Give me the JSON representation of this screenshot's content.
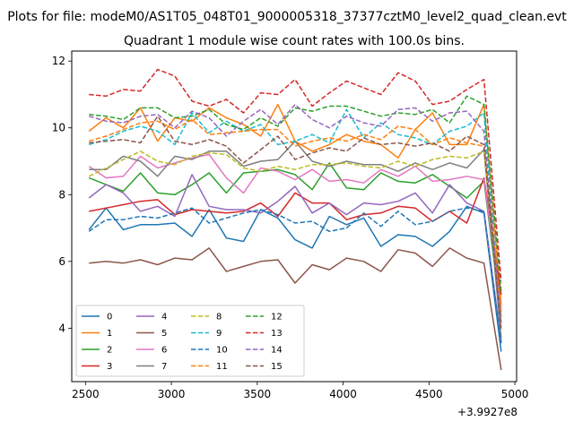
{
  "chart_data": {
    "type": "line",
    "suptitle": "Plots for file: modeM0/AS1T05_048T01_9000005318_37377cztM0_level2_quad_clean.evt",
    "title": "Quadrant 1 module wise count rates with 100.0s bins.",
    "xlabel": "",
    "ylabel": "",
    "x_offset_label": "+3.9927e8",
    "xlim": [
      2420,
      5010
    ],
    "ylim": [
      2.4,
      12.3
    ],
    "x_ticks": [
      2500,
      3000,
      3500,
      4000,
      4500,
      5000
    ],
    "x_tick_labels": [
      "2500",
      "3000",
      "3500",
      "4000",
      "4500",
      "5000"
    ],
    "y_ticks": [
      4,
      6,
      8,
      10,
      12
    ],
    "y_tick_labels": [
      "4",
      "6",
      "8",
      "10",
      "12"
    ],
    "grid": false,
    "legend_position": "lower-left",
    "x": [
      2520,
      2620,
      2720,
      2820,
      2920,
      3020,
      3120,
      3220,
      3320,
      3420,
      3520,
      3620,
      3720,
      3820,
      3920,
      4020,
      4120,
      4220,
      4320,
      4420,
      4520,
      4620,
      4720,
      4820,
      4920
    ],
    "series": [
      {
        "name": "0",
        "color": "#1f77b4",
        "dash": "solid",
        "values": [
          6.95,
          7.6,
          6.95,
          7.1,
          7.1,
          7.15,
          6.75,
          7.55,
          6.7,
          6.6,
          7.55,
          7.3,
          6.65,
          6.4,
          7.35,
          7.1,
          7.3,
          6.45,
          6.8,
          6.75,
          6.45,
          6.9,
          7.65,
          7.45,
          3.3
        ]
      },
      {
        "name": "1",
        "color": "#ff7f0e",
        "dash": "solid",
        "values": [
          9.9,
          10.3,
          10.0,
          10.6,
          9.6,
          10.3,
          10.2,
          10.6,
          10.3,
          10.1,
          9.75,
          10.7,
          9.6,
          9.3,
          9.5,
          9.8,
          9.6,
          9.5,
          9.1,
          9.95,
          10.45,
          9.5,
          9.5,
          10.7,
          4.7
        ]
      },
      {
        "name": "2",
        "color": "#2ca02c",
        "dash": "solid",
        "values": [
          8.5,
          8.3,
          8.1,
          8.65,
          8.05,
          8.0,
          8.3,
          8.65,
          8.05,
          8.65,
          8.7,
          8.75,
          8.6,
          8.15,
          8.95,
          8.2,
          8.15,
          8.65,
          8.4,
          8.35,
          8.6,
          8.25,
          7.9,
          8.4,
          4.35
        ]
      },
      {
        "name": "3",
        "color": "#d62728",
        "dash": "solid",
        "values": [
          7.5,
          7.6,
          7.7,
          7.8,
          7.85,
          7.4,
          7.55,
          7.5,
          7.45,
          7.5,
          7.75,
          7.35,
          8.05,
          7.75,
          7.75,
          7.25,
          7.4,
          7.45,
          7.65,
          7.6,
          7.2,
          7.5,
          7.15,
          8.5,
          5.0
        ]
      },
      {
        "name": "4",
        "color": "#9467bd",
        "dash": "solid",
        "values": [
          7.9,
          8.3,
          8.05,
          7.5,
          7.65,
          7.35,
          8.6,
          7.65,
          7.55,
          7.55,
          7.45,
          7.8,
          8.25,
          7.45,
          7.75,
          7.4,
          7.75,
          7.7,
          7.8,
          8.05,
          7.45,
          8.3,
          7.75,
          7.5,
          3.6
        ]
      },
      {
        "name": "5",
        "color": "#8c564b",
        "dash": "solid",
        "values": [
          5.95,
          6.0,
          5.95,
          6.05,
          5.9,
          6.1,
          6.05,
          6.4,
          5.7,
          5.85,
          6.0,
          6.05,
          5.35,
          5.9,
          5.75,
          6.1,
          6.0,
          5.7,
          6.35,
          6.25,
          5.85,
          6.4,
          6.1,
          5.95,
          2.75
        ]
      },
      {
        "name": "6",
        "color": "#e377c2",
        "dash": "solid",
        "values": [
          8.85,
          8.5,
          8.55,
          9.15,
          8.8,
          8.95,
          9.1,
          9.2,
          8.5,
          8.05,
          8.8,
          8.7,
          8.45,
          8.75,
          8.4,
          8.45,
          8.35,
          8.75,
          8.55,
          8.85,
          8.4,
          8.45,
          8.55,
          8.45,
          4.6
        ]
      },
      {
        "name": "7",
        "color": "#7f7f7f",
        "dash": "solid",
        "values": [
          8.75,
          8.75,
          9.15,
          9.0,
          8.55,
          9.15,
          9.05,
          9.3,
          9.3,
          8.85,
          9.0,
          9.05,
          9.6,
          9.0,
          8.85,
          9.0,
          8.9,
          8.9,
          8.7,
          8.95,
          8.75,
          8.95,
          8.8,
          9.35,
          3.7
        ]
      },
      {
        "name": "8",
        "color": "#bcbd22",
        "dash": "dashed",
        "values": [
          8.55,
          8.8,
          9.05,
          9.3,
          9.0,
          8.9,
          9.15,
          9.25,
          9.2,
          8.8,
          8.7,
          8.85,
          8.75,
          8.9,
          8.9,
          8.95,
          8.85,
          8.8,
          9.0,
          8.85,
          9.05,
          9.15,
          9.1,
          9.3,
          4.3
        ]
      },
      {
        "name": "9",
        "color": "#17becf",
        "dash": "dashed",
        "values": [
          9.5,
          9.65,
          9.9,
          10.05,
          9.9,
          9.5,
          10.45,
          9.85,
          10.2,
          9.9,
          10.1,
          9.5,
          9.6,
          9.8,
          9.55,
          10.55,
          9.7,
          10.15,
          9.8,
          9.7,
          9.5,
          9.9,
          10.05,
          10.45,
          4.05
        ]
      },
      {
        "name": "10",
        "color": "#1f77b4",
        "dash": "dashed",
        "values": [
          6.9,
          7.25,
          7.25,
          7.35,
          7.3,
          7.45,
          7.6,
          7.15,
          7.3,
          7.45,
          7.55,
          7.4,
          7.15,
          7.2,
          6.9,
          7.0,
          7.45,
          7.05,
          7.5,
          7.1,
          7.2,
          7.5,
          7.6,
          7.5,
          3.55
        ]
      },
      {
        "name": "11",
        "color": "#ff7f0e",
        "dash": "dashed",
        "values": [
          9.6,
          9.75,
          9.95,
          10.15,
          10.2,
          9.95,
          10.25,
          9.8,
          9.85,
          9.9,
          9.95,
          9.95,
          9.45,
          9.6,
          9.7,
          9.6,
          9.8,
          9.65,
          10.05,
          9.95,
          9.5,
          9.7,
          9.55,
          9.45,
          4.5
        ]
      },
      {
        "name": "12",
        "color": "#2ca02c",
        "dash": "dashed",
        "values": [
          10.4,
          10.35,
          10.25,
          10.6,
          10.6,
          10.3,
          10.35,
          10.55,
          10.1,
          9.95,
          10.3,
          10.05,
          10.6,
          10.5,
          10.65,
          10.65,
          10.5,
          10.35,
          10.45,
          10.4,
          10.55,
          10.15,
          10.95,
          10.7,
          5.1
        ]
      },
      {
        "name": "13",
        "color": "#d62728",
        "dash": "dashed",
        "values": [
          11.0,
          10.95,
          11.15,
          11.1,
          11.75,
          11.55,
          10.8,
          10.65,
          10.85,
          10.45,
          11.05,
          11.0,
          11.45,
          10.65,
          11.05,
          11.4,
          11.2,
          11.0,
          11.65,
          11.4,
          10.7,
          10.8,
          11.15,
          11.45,
          5.4
        ]
      },
      {
        "name": "14",
        "color": "#9467bd",
        "dash": "dashed",
        "values": [
          10.35,
          10.2,
          10.15,
          10.35,
          10.4,
          10.0,
          10.5,
          10.3,
          9.75,
          10.2,
          10.55,
          10.1,
          10.7,
          10.25,
          10.0,
          10.35,
          10.15,
          10.05,
          10.55,
          10.6,
          10.2,
          10.45,
          10.5,
          9.9,
          4.15
        ]
      },
      {
        "name": "15",
        "color": "#8c564b",
        "dash": "dashed",
        "values": [
          9.55,
          9.6,
          9.65,
          9.55,
          10.35,
          9.6,
          9.5,
          9.65,
          9.45,
          8.95,
          9.35,
          9.75,
          9.05,
          9.25,
          9.4,
          9.3,
          9.7,
          9.5,
          9.55,
          9.45,
          9.55,
          9.3,
          9.75,
          9.5,
          3.95
        ]
      }
    ]
  }
}
